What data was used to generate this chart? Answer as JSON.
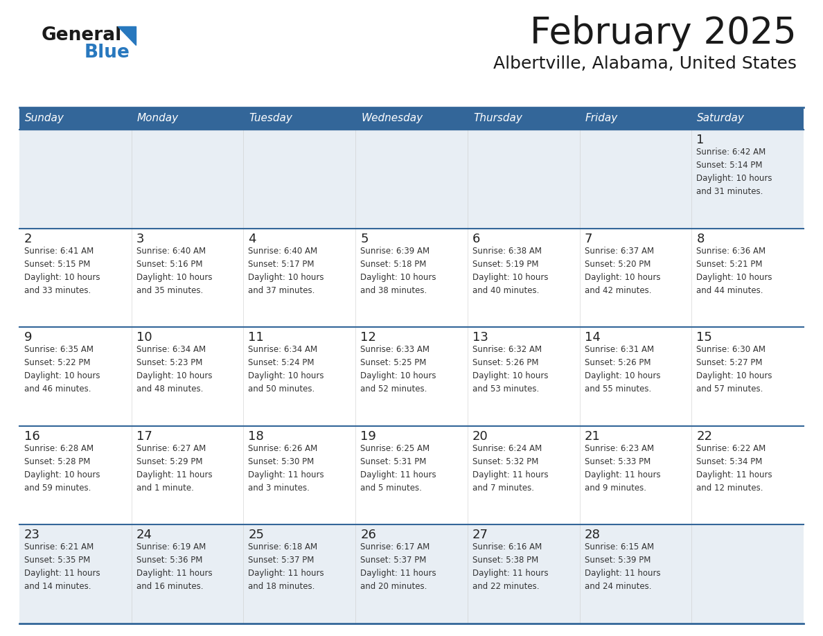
{
  "title": "February 2025",
  "subtitle": "Albertville, Alabama, United States",
  "header_bg_color": "#336699",
  "header_text_color": "#ffffff",
  "border_color": "#336699",
  "week_sep_color": "#336699",
  "cell_bg_week0": "#e8eef4",
  "cell_bg_other": "#ffffff",
  "last_row_bg": "#f0f4f8",
  "day_headers": [
    "Sunday",
    "Monday",
    "Tuesday",
    "Wednesday",
    "Thursday",
    "Friday",
    "Saturday"
  ],
  "title_color": "#1a1a1a",
  "subtitle_color": "#1a1a1a",
  "cell_text_color": "#333333",
  "day_num_color": "#222222",
  "logo_general_color": "#1a1a1a",
  "logo_blue_color": "#2878be",
  "logo_triangle_color": "#2878be",
  "weeks": [
    [
      {
        "day": null,
        "sunrise": null,
        "sunset": null,
        "daylight": null
      },
      {
        "day": null,
        "sunrise": null,
        "sunset": null,
        "daylight": null
      },
      {
        "day": null,
        "sunrise": null,
        "sunset": null,
        "daylight": null
      },
      {
        "day": null,
        "sunrise": null,
        "sunset": null,
        "daylight": null
      },
      {
        "day": null,
        "sunrise": null,
        "sunset": null,
        "daylight": null
      },
      {
        "day": null,
        "sunrise": null,
        "sunset": null,
        "daylight": null
      },
      {
        "day": 1,
        "sunrise": "6:42 AM",
        "sunset": "5:14 PM",
        "daylight": "10 hours\nand 31 minutes."
      }
    ],
    [
      {
        "day": 2,
        "sunrise": "6:41 AM",
        "sunset": "5:15 PM",
        "daylight": "10 hours\nand 33 minutes."
      },
      {
        "day": 3,
        "sunrise": "6:40 AM",
        "sunset": "5:16 PM",
        "daylight": "10 hours\nand 35 minutes."
      },
      {
        "day": 4,
        "sunrise": "6:40 AM",
        "sunset": "5:17 PM",
        "daylight": "10 hours\nand 37 minutes."
      },
      {
        "day": 5,
        "sunrise": "6:39 AM",
        "sunset": "5:18 PM",
        "daylight": "10 hours\nand 38 minutes."
      },
      {
        "day": 6,
        "sunrise": "6:38 AM",
        "sunset": "5:19 PM",
        "daylight": "10 hours\nand 40 minutes."
      },
      {
        "day": 7,
        "sunrise": "6:37 AM",
        "sunset": "5:20 PM",
        "daylight": "10 hours\nand 42 minutes."
      },
      {
        "day": 8,
        "sunrise": "6:36 AM",
        "sunset": "5:21 PM",
        "daylight": "10 hours\nand 44 minutes."
      }
    ],
    [
      {
        "day": 9,
        "sunrise": "6:35 AM",
        "sunset": "5:22 PM",
        "daylight": "10 hours\nand 46 minutes."
      },
      {
        "day": 10,
        "sunrise": "6:34 AM",
        "sunset": "5:23 PM",
        "daylight": "10 hours\nand 48 minutes."
      },
      {
        "day": 11,
        "sunrise": "6:34 AM",
        "sunset": "5:24 PM",
        "daylight": "10 hours\nand 50 minutes."
      },
      {
        "day": 12,
        "sunrise": "6:33 AM",
        "sunset": "5:25 PM",
        "daylight": "10 hours\nand 52 minutes."
      },
      {
        "day": 13,
        "sunrise": "6:32 AM",
        "sunset": "5:26 PM",
        "daylight": "10 hours\nand 53 minutes."
      },
      {
        "day": 14,
        "sunrise": "6:31 AM",
        "sunset": "5:26 PM",
        "daylight": "10 hours\nand 55 minutes."
      },
      {
        "day": 15,
        "sunrise": "6:30 AM",
        "sunset": "5:27 PM",
        "daylight": "10 hours\nand 57 minutes."
      }
    ],
    [
      {
        "day": 16,
        "sunrise": "6:28 AM",
        "sunset": "5:28 PM",
        "daylight": "10 hours\nand 59 minutes."
      },
      {
        "day": 17,
        "sunrise": "6:27 AM",
        "sunset": "5:29 PM",
        "daylight": "11 hours\nand 1 minute."
      },
      {
        "day": 18,
        "sunrise": "6:26 AM",
        "sunset": "5:30 PM",
        "daylight": "11 hours\nand 3 minutes."
      },
      {
        "day": 19,
        "sunrise": "6:25 AM",
        "sunset": "5:31 PM",
        "daylight": "11 hours\nand 5 minutes."
      },
      {
        "day": 20,
        "sunrise": "6:24 AM",
        "sunset": "5:32 PM",
        "daylight": "11 hours\nand 7 minutes."
      },
      {
        "day": 21,
        "sunrise": "6:23 AM",
        "sunset": "5:33 PM",
        "daylight": "11 hours\nand 9 minutes."
      },
      {
        "day": 22,
        "sunrise": "6:22 AM",
        "sunset": "5:34 PM",
        "daylight": "11 hours\nand 12 minutes."
      }
    ],
    [
      {
        "day": 23,
        "sunrise": "6:21 AM",
        "sunset": "5:35 PM",
        "daylight": "11 hours\nand 14 minutes."
      },
      {
        "day": 24,
        "sunrise": "6:19 AM",
        "sunset": "5:36 PM",
        "daylight": "11 hours\nand 16 minutes."
      },
      {
        "day": 25,
        "sunrise": "6:18 AM",
        "sunset": "5:37 PM",
        "daylight": "11 hours\nand 18 minutes."
      },
      {
        "day": 26,
        "sunrise": "6:17 AM",
        "sunset": "5:37 PM",
        "daylight": "11 hours\nand 20 minutes."
      },
      {
        "day": 27,
        "sunrise": "6:16 AM",
        "sunset": "5:38 PM",
        "daylight": "11 hours\nand 22 minutes."
      },
      {
        "day": 28,
        "sunrise": "6:15 AM",
        "sunset": "5:39 PM",
        "daylight": "11 hours\nand 24 minutes."
      },
      {
        "day": null,
        "sunrise": null,
        "sunset": null,
        "daylight": null
      }
    ]
  ]
}
